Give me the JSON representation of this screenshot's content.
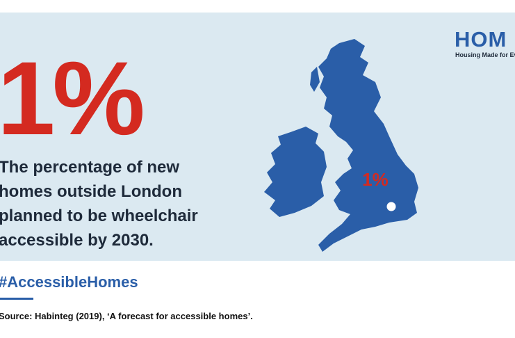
{
  "logo": {
    "mark": "HOM",
    "tagline": "Housing Made for Ever"
  },
  "headline": {
    "stat": "1%",
    "lines": [
      "The percentage of new",
      "homes outside London",
      "planned to be wheelchair",
      "accessible by 2030."
    ]
  },
  "map": {
    "label": "1%"
  },
  "hashtag": "#AccessibleHomes",
  "source": "Source: Habinteg (2019), ‘A forecast for accessible homes’."
}
